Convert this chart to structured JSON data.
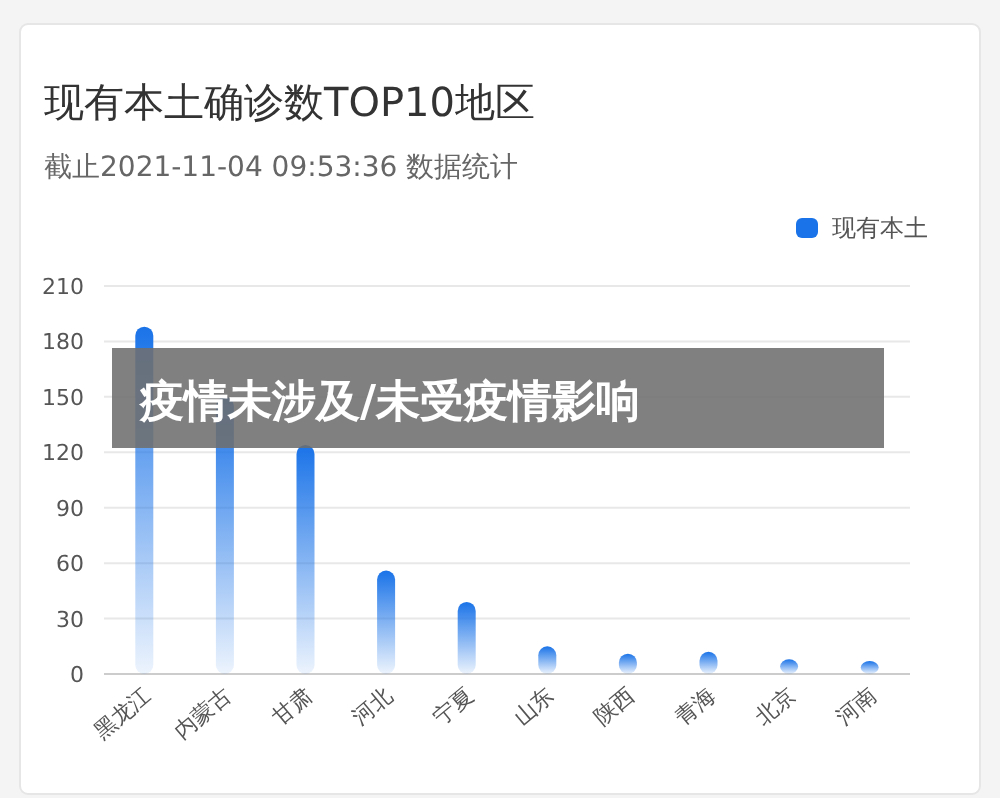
{
  "chart_data": {
    "type": "bar",
    "title": "现有本土确诊数TOP10地区",
    "subtitle": "截止2021-11-04 09:53:36 数据统计",
    "categories": [
      "黑龙江",
      "内蒙古",
      "甘肃",
      "河北",
      "宁夏",
      "山东",
      "陕西",
      "青海",
      "北京",
      "河南"
    ],
    "series": [
      {
        "name": "现有本土",
        "color": "#1a73e8",
        "values": [
          188,
          150,
          124,
          56,
          39,
          15,
          11,
          12,
          8,
          7
        ]
      }
    ],
    "ylim": [
      0,
      210
    ],
    "yticks": [
      0,
      30,
      60,
      90,
      120,
      150,
      180,
      210
    ],
    "grid": "y",
    "legend": "top right",
    "annotations": [
      "疫情未涉及/未受疫情影响"
    ]
  }
}
